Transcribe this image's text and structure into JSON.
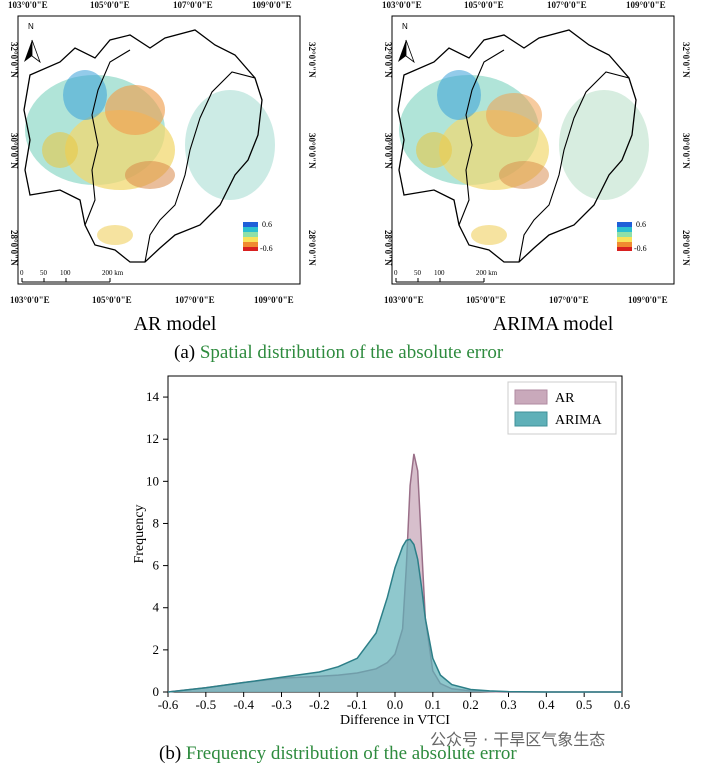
{
  "maps": {
    "panels": [
      {
        "title": "AR model",
        "top_ticks": [
          "103°0'0\"E",
          "105°0'0\"E",
          "107°0'0\"E",
          "109°0'0\"E"
        ],
        "bottom_ticks": [
          "103°0'0\"E",
          "105°0'0\"E",
          "107°0'0\"E",
          "109°0'0\"E"
        ],
        "left_ticks": [
          "32°0'0\"N",
          "30°0'0\"N",
          "28°0'0\"N"
        ],
        "right_ticks": [
          "32°0'0\"N",
          "30°0'0\"N",
          "28°0'0\"N"
        ],
        "north_label": "N",
        "legend": {
          "max": "0.6",
          "min": "-0.6"
        },
        "scale_bar": [
          "0",
          "50",
          "100",
          "200 km"
        ]
      },
      {
        "title": "ARIMA model",
        "top_ticks": [
          "103°0'0\"E",
          "105°0'0\"E",
          "107°0'0\"E",
          "109°0'0\"E"
        ],
        "bottom_ticks": [
          "103°0'0\"E",
          "105°0'0\"E",
          "107°0'0\"E",
          "109°0'0\"E"
        ],
        "left_ticks": [
          "32°0'0\"N",
          "30°0'0\"N",
          "28°0'0\"N"
        ],
        "right_ticks": [
          "32°0'0\"N",
          "30°0'0\"N",
          "28°0'0\"N"
        ],
        "north_label": "N",
        "legend": {
          "max": "0.6",
          "min": "-0.6"
        },
        "scale_bar": [
          "0",
          "50",
          "100",
          "200 km"
        ]
      }
    ]
  },
  "captions": {
    "a_prefix": "(a)",
    "a_text": "Spatial distribution of the absolute error",
    "b_prefix": "(b)",
    "b_text": "Frequency distribution of the absolute error"
  },
  "watermark": "公众号 · 干旱区气象生态",
  "chart_data": {
    "type": "area",
    "title": "",
    "xlabel": "Difference in VTCI",
    "ylabel": "Frequency",
    "xlim": [
      -0.6,
      0.6
    ],
    "ylim": [
      0,
      15
    ],
    "x_ticks": [
      "-0.6",
      "-0.5",
      "-0.4",
      "-0.3",
      "-0.2",
      "-0.1",
      "0.0",
      "0.1",
      "0.2",
      "0.3",
      "0.4",
      "0.5",
      "0.6"
    ],
    "y_ticks": [
      "0",
      "2",
      "4",
      "6",
      "8",
      "10",
      "12",
      "14"
    ],
    "legend_position": "top-right",
    "x": [
      -0.6,
      -0.5,
      -0.4,
      -0.3,
      -0.2,
      -0.15,
      -0.1,
      -0.05,
      -0.02,
      0.0,
      0.02,
      0.03,
      0.04,
      0.05,
      0.06,
      0.07,
      0.08,
      0.1,
      0.12,
      0.15,
      0.2,
      0.25,
      0.3,
      0.4,
      0.5,
      0.6
    ],
    "series": [
      {
        "name": "AR",
        "color": "#c9a9bb",
        "values": [
          0.0,
          0.2,
          0.45,
          0.65,
          0.75,
          0.8,
          0.9,
          1.1,
          1.4,
          1.8,
          3.0,
          6.0,
          9.8,
          11.3,
          10.5,
          7.0,
          3.5,
          1.0,
          0.4,
          0.15,
          0.05,
          0.02,
          0.0,
          0.0,
          0.0,
          0.0
        ]
      },
      {
        "name": "ARIMA",
        "color": "#5fb0b8",
        "values": [
          0.0,
          0.2,
          0.45,
          0.7,
          0.95,
          1.2,
          1.6,
          2.8,
          4.5,
          5.9,
          6.9,
          7.2,
          7.25,
          7.0,
          6.3,
          5.0,
          3.5,
          1.6,
          0.8,
          0.35,
          0.12,
          0.05,
          0.02,
          0.0,
          0.0,
          0.0
        ]
      }
    ]
  }
}
